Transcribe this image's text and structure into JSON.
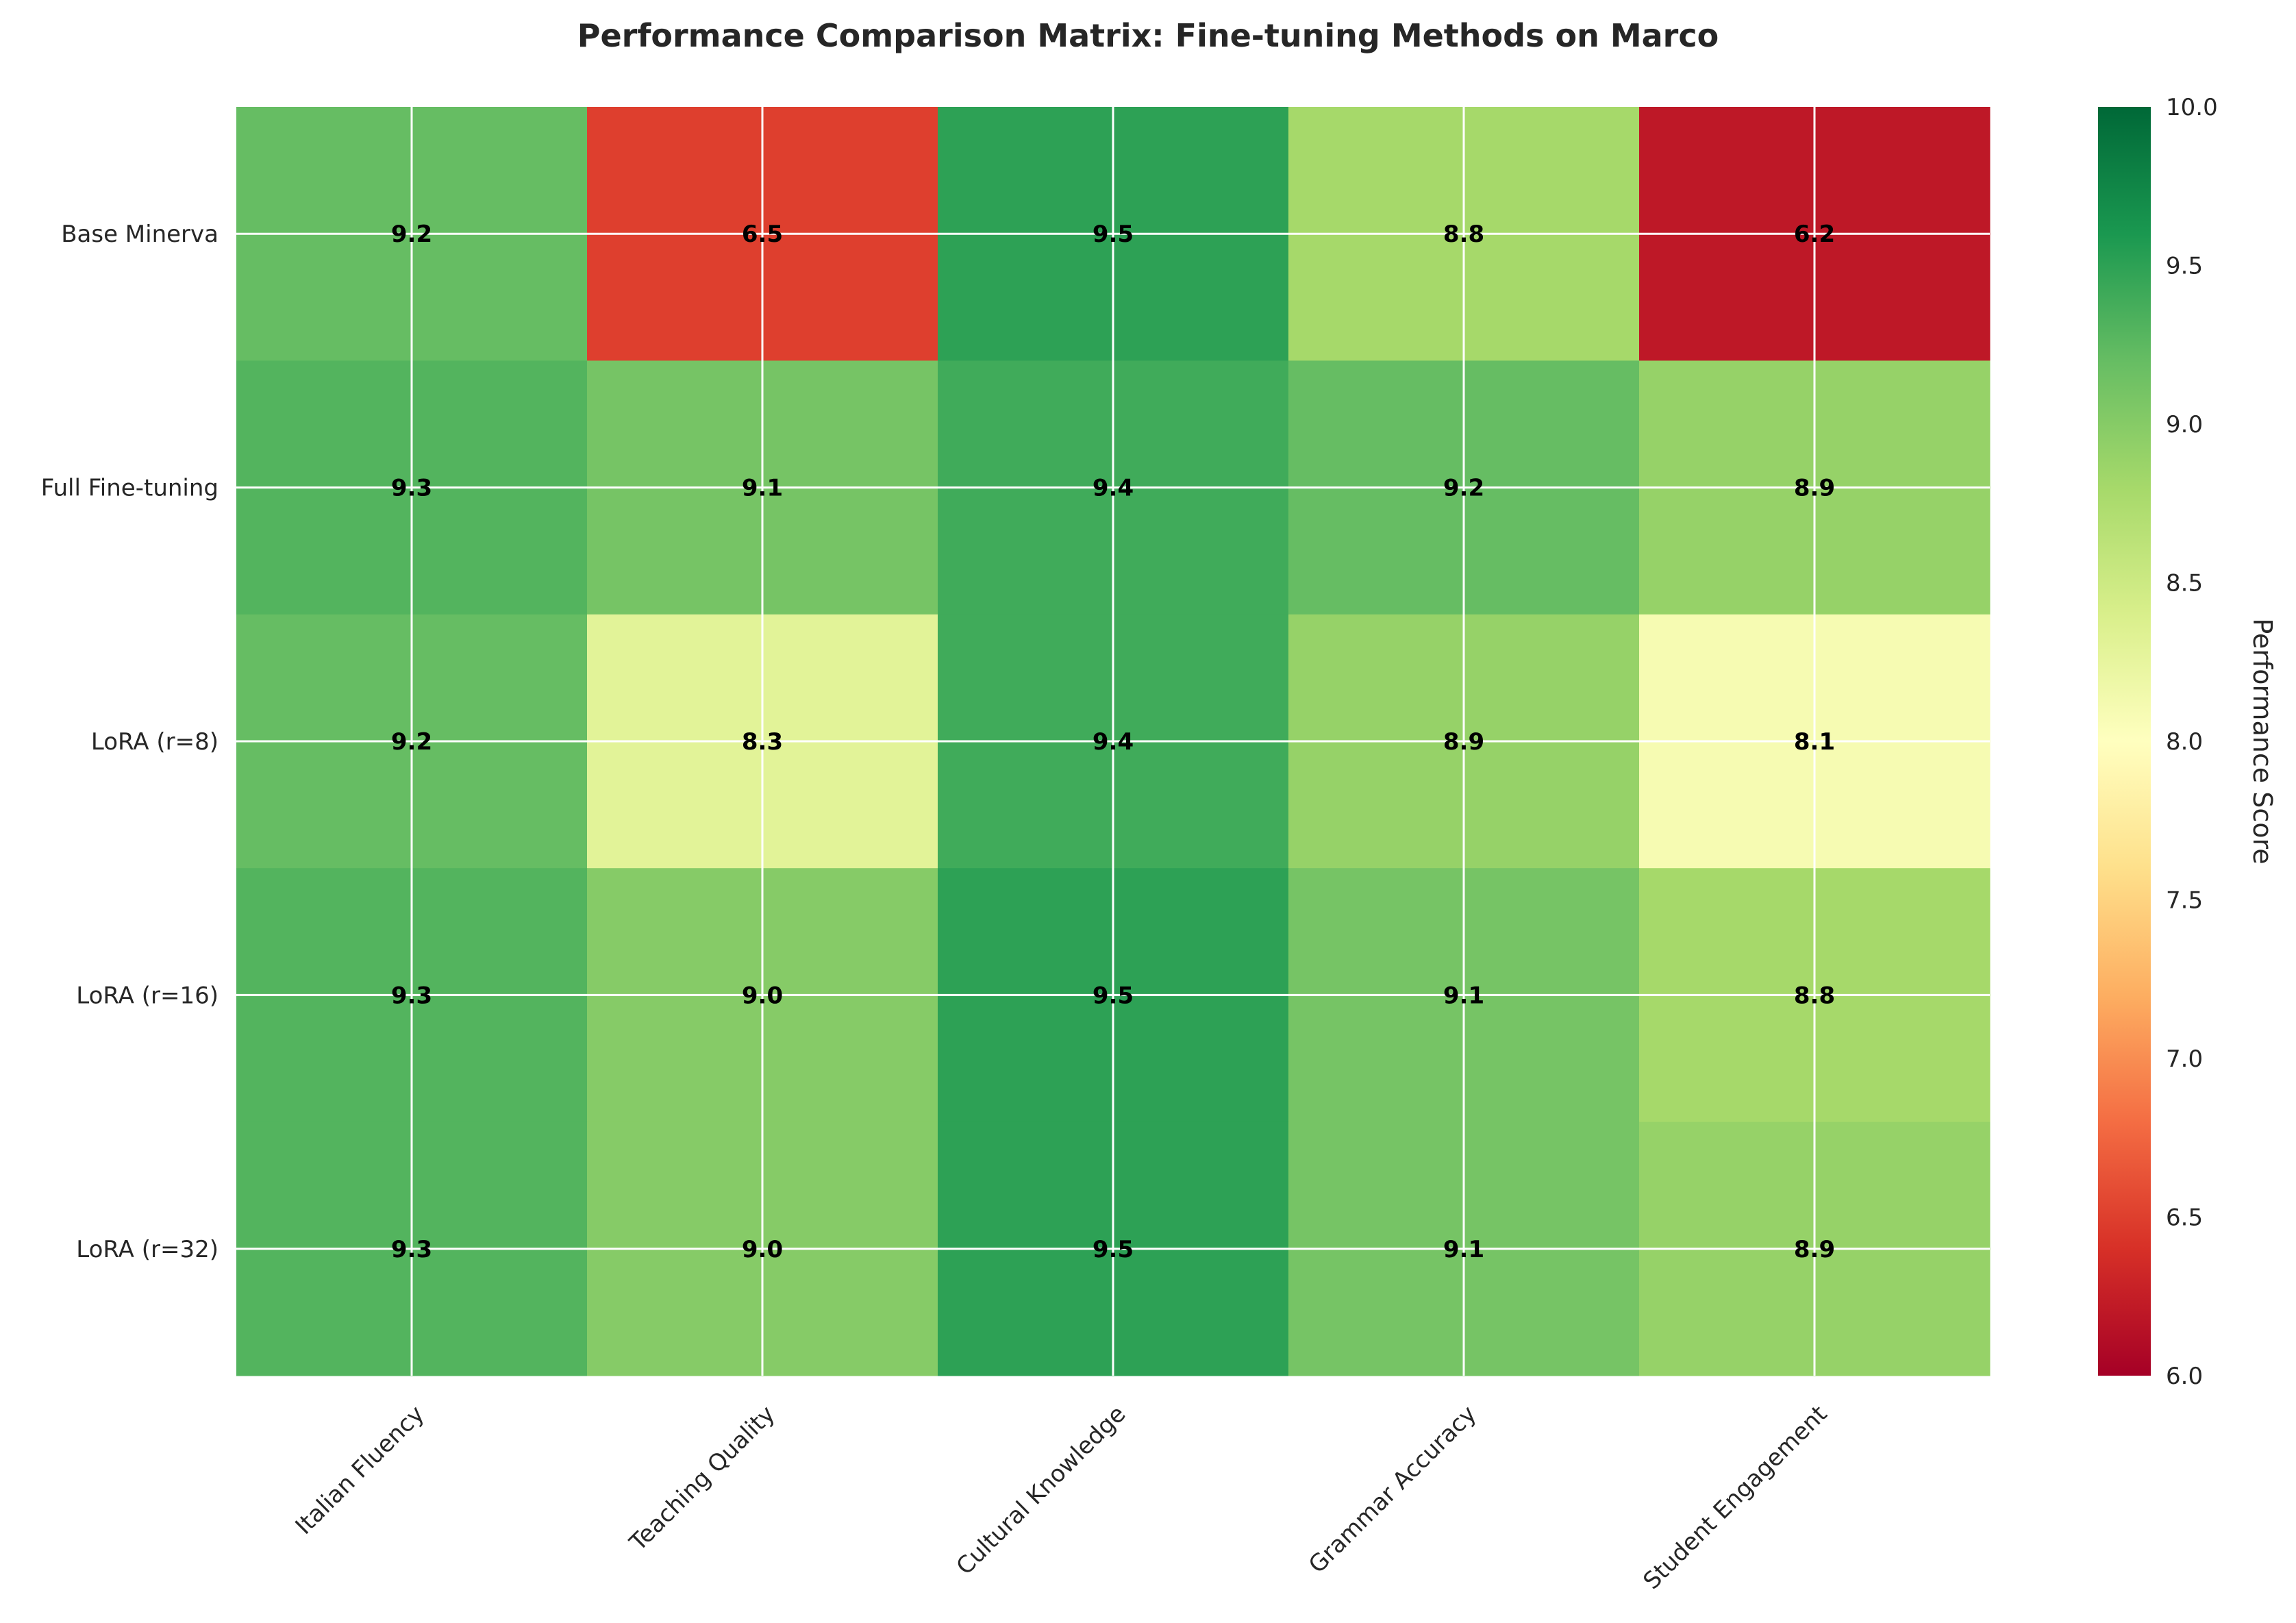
{
  "chart_data": {
    "type": "heatmap",
    "title": "Performance Comparison Matrix: Fine-tuning Methods on Marco",
    "rows": [
      "Base Minerva",
      "Full Fine-tuning",
      "LoRA (r=8)",
      "LoRA (r=16)",
      "LoRA (r=32)"
    ],
    "columns": [
      "Italian Fluency",
      "Teaching Quality",
      "Cultural Knowledge",
      "Grammar Accuracy",
      "Student Engagement"
    ],
    "values": [
      [
        9.2,
        6.5,
        9.5,
        8.8,
        6.2
      ],
      [
        9.3,
        9.1,
        9.4,
        9.2,
        8.9
      ],
      [
        9.2,
        8.3,
        9.4,
        8.9,
        8.1
      ],
      [
        9.3,
        9.0,
        9.5,
        9.1,
        8.8
      ],
      [
        9.3,
        9.0,
        9.5,
        9.1,
        8.9
      ]
    ],
    "value_labels": [
      [
        "9.2",
        "6.5",
        "9.5",
        "8.8",
        "6.2"
      ],
      [
        "9.3",
        "9.1",
        "9.4",
        "9.2",
        "8.9"
      ],
      [
        "9.2",
        "8.3",
        "9.4",
        "8.9",
        "8.1"
      ],
      [
        "9.3",
        "9.0",
        "9.5",
        "9.1",
        "8.8"
      ],
      [
        "9.3",
        "9.0",
        "9.5",
        "9.1",
        "8.9"
      ]
    ],
    "colorbar": {
      "label": "Performance Score",
      "range": [
        6.0,
        10.0
      ],
      "ticks": [
        "6.0",
        "6.5",
        "7.0",
        "7.5",
        "8.0",
        "8.5",
        "9.0",
        "9.5",
        "10.0"
      ],
      "colormap": "RdYlGn"
    },
    "grid": true
  }
}
